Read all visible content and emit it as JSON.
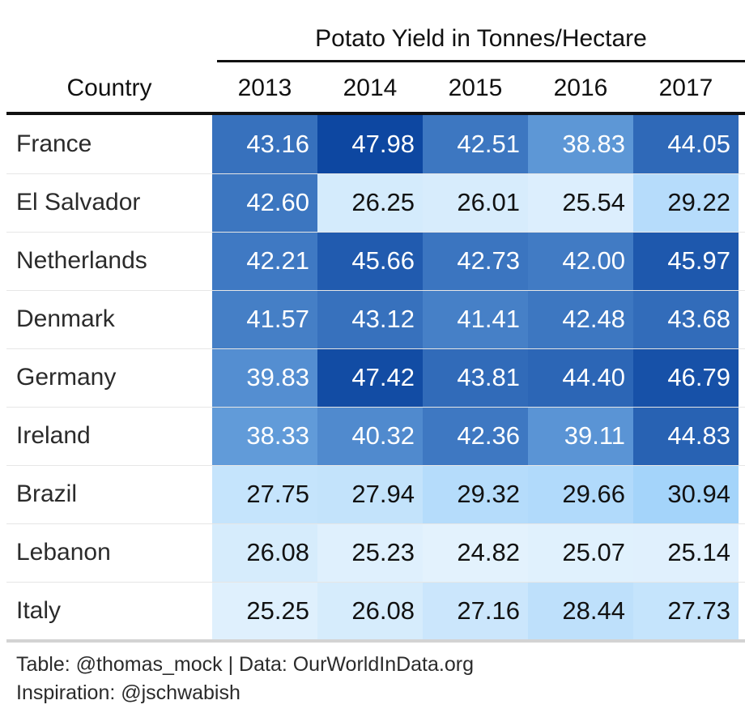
{
  "chart_data": {
    "type": "table",
    "spanner_label": "Potato Yield in Tonnes/Hectare",
    "row_header_label": "Country",
    "columns": [
      "2013",
      "2014",
      "2015",
      "2016",
      "2017"
    ],
    "rows": [
      {
        "country": "France",
        "values": [
          "43.16",
          "47.98",
          "42.51",
          "38.83",
          "44.05"
        ]
      },
      {
        "country": "El Salvador",
        "values": [
          "42.60",
          "26.25",
          "26.01",
          "25.54",
          "29.22"
        ]
      },
      {
        "country": "Netherlands",
        "values": [
          "42.21",
          "45.66",
          "42.73",
          "42.00",
          "45.97"
        ]
      },
      {
        "country": "Denmark",
        "values": [
          "41.57",
          "43.12",
          "41.41",
          "42.48",
          "43.68"
        ]
      },
      {
        "country": "Germany",
        "values": [
          "39.83",
          "47.42",
          "43.81",
          "44.40",
          "46.79"
        ]
      },
      {
        "country": "Ireland",
        "values": [
          "38.33",
          "40.32",
          "42.36",
          "39.11",
          "44.83"
        ]
      },
      {
        "country": "Brazil",
        "values": [
          "27.75",
          "27.94",
          "29.32",
          "29.66",
          "30.94"
        ]
      },
      {
        "country": "Lebanon",
        "values": [
          "26.08",
          "25.23",
          "24.82",
          "25.07",
          "25.14"
        ]
      },
      {
        "country": "Italy",
        "values": [
          "25.25",
          "26.08",
          "27.16",
          "28.44",
          "27.73"
        ]
      }
    ],
    "color_scale": {
      "low": "#e3f2fd",
      "mid": "#90caf9",
      "high": "#0d47a1",
      "domain": [
        24.82,
        47.98
      ]
    }
  },
  "source_note": {
    "line1": "Table: @thomas_mock | Data: OurWorldInData.org",
    "line2": "Inspiration: @jschwabish"
  }
}
